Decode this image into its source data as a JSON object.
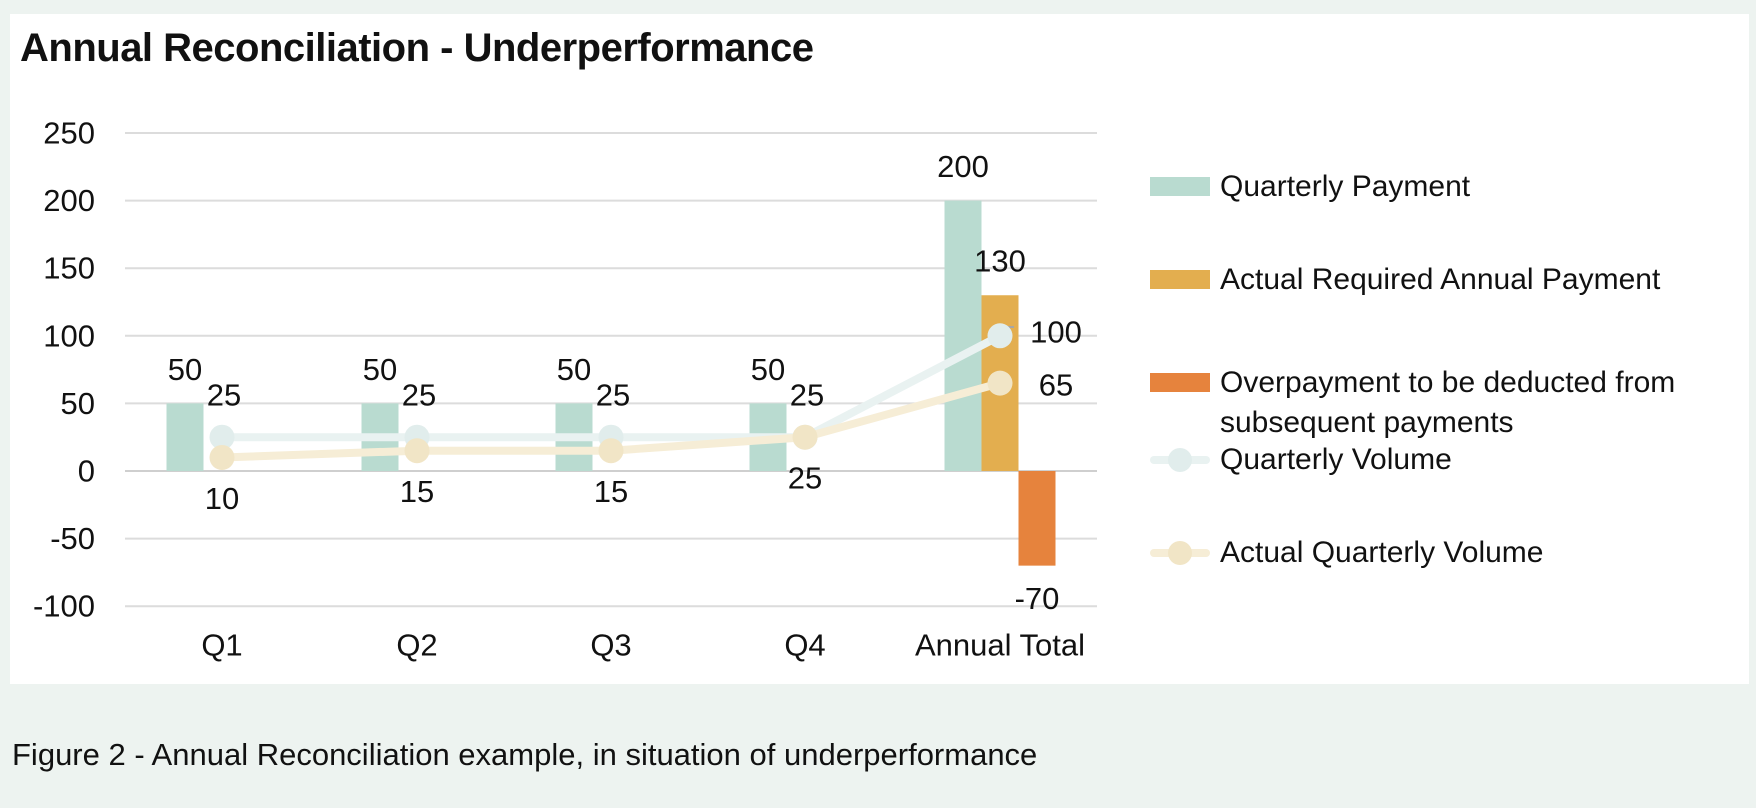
{
  "caption": {
    "text": "Figure 2 - Annual Reconciliation example, in situation of underperformance"
  },
  "colors": {
    "page_background": "#edf3f0",
    "card_background": "#ffffff",
    "gridline": "#dcdcdc",
    "zero_line": "#cfcfcf",
    "label_text": "#111111",
    "leader_line": "#a6a6a6"
  },
  "chart_data": {
    "type": "bar",
    "subtype": "combo-bar-line",
    "title": "Annual Reconciliation - Underperformance",
    "xlabel": "",
    "ylabel": "",
    "categories": [
      "Q1",
      "Q2",
      "Q3",
      "Q4",
      "Annual Total"
    ],
    "y_axis": {
      "min": -100,
      "max": 250,
      "step": 50,
      "ticks": [
        250,
        200,
        150,
        100,
        50,
        0,
        -50,
        -100
      ]
    },
    "grid": "horizontal",
    "legend_position": "right",
    "bar_series": [
      {
        "name": "Quarterly Payment",
        "color": "#b9dbd0",
        "values": [
          50,
          50,
          50,
          50,
          200
        ]
      },
      {
        "name": "Actual Required Annual Payment",
        "color": "#e3ae4f",
        "values": [
          null,
          null,
          null,
          null,
          130
        ]
      },
      {
        "name": "Overpayment to be deducted from subsequent payments",
        "color": "#e6833d",
        "values": [
          null,
          null,
          null,
          null,
          -70
        ]
      }
    ],
    "line_series": [
      {
        "name": "Quarterly Volume",
        "color": "#e9f2f1",
        "marker_color": "#e1edec",
        "values": [
          25,
          25,
          25,
          25,
          100
        ],
        "label_positions": [
          "above",
          "above",
          "above",
          "above",
          "right"
        ]
      },
      {
        "name": "Actual Quarterly Volume",
        "color": "#f6edd6",
        "marker_color": "#f1e5c6",
        "values": [
          10,
          15,
          15,
          25,
          65
        ],
        "label_positions": [
          "below",
          "below",
          "below",
          "below",
          "right"
        ]
      }
    ]
  }
}
